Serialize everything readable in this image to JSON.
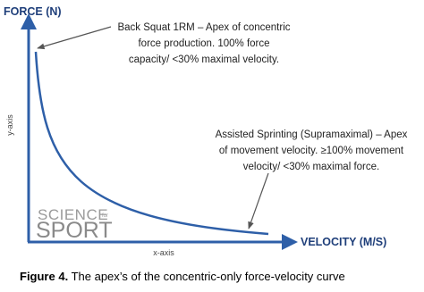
{
  "axes": {
    "y_title": "FORCE (N)",
    "y_label": "y-axis",
    "x_title": "VELOCITY (M/S)",
    "x_label": "x-axis"
  },
  "annotations": [
    {
      "lines": [
        "Back Squat 1RM – Apex of concentric",
        "force production. 100% force",
        "capacity/ <30% maximal velocity."
      ]
    },
    {
      "lines": [
        "Assisted Sprinting (Supramaximal) – Apex",
        "of movement velocity. ≥100% movement",
        "velocity/ <30% maximal force."
      ]
    }
  ],
  "logo": {
    "top": "SCIENCE",
    "small": "for",
    "bottom": "SPORT"
  },
  "caption": {
    "label": "Figure 4.",
    "text": "The apex’s of the concentric-only force-velocity curve"
  }
}
